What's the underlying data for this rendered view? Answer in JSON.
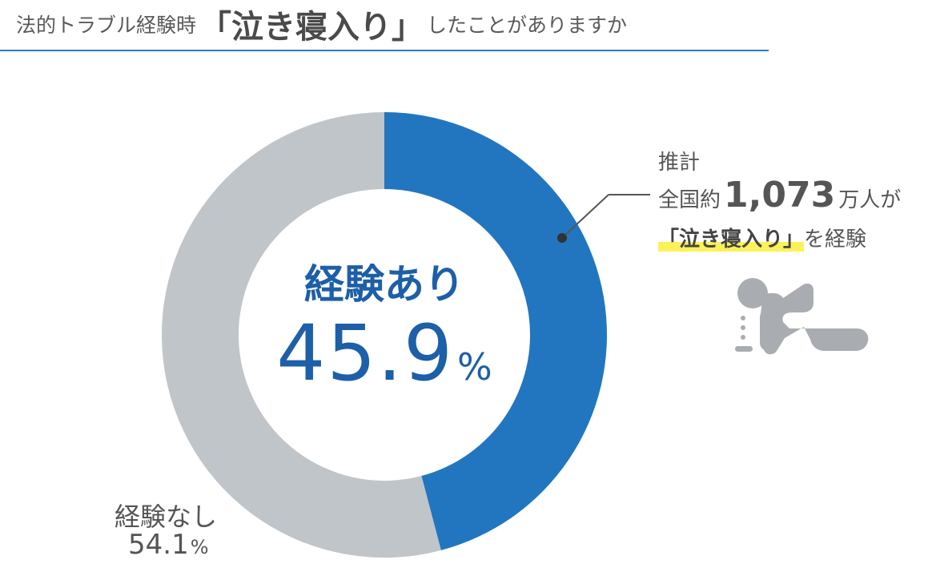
{
  "header": {
    "title_prefix": "法的トラブル経験時",
    "title_emphasis": "「泣き寝入り」",
    "title_suffix": "したことがありますか"
  },
  "annotation": {
    "line1": "推計",
    "line2_prefix": "全国約",
    "line2_number": "1,073",
    "line2_suffix": "万人が",
    "line3_highlight": "「泣き寝入り」",
    "line3_suffix": "を経験"
  },
  "colors": {
    "experienced": "#2176bf",
    "not_experienced": "#c0c5ca",
    "title_rule": "#2f7bc4",
    "highlight": "#fbf25a",
    "icon": "#a9adb2"
  },
  "icon": "crying-kneeling-person-icon",
  "chart_data": {
    "type": "pie",
    "donut": true,
    "title": "法的トラブル経験時「泣き寝入り」したことがありますか",
    "slices": [
      {
        "label": "経験あり",
        "value": 45.9,
        "display": "45.9",
        "unit": "%"
      },
      {
        "label": "経験なし",
        "value": 54.1,
        "display": "54.1",
        "unit": "%"
      }
    ]
  }
}
